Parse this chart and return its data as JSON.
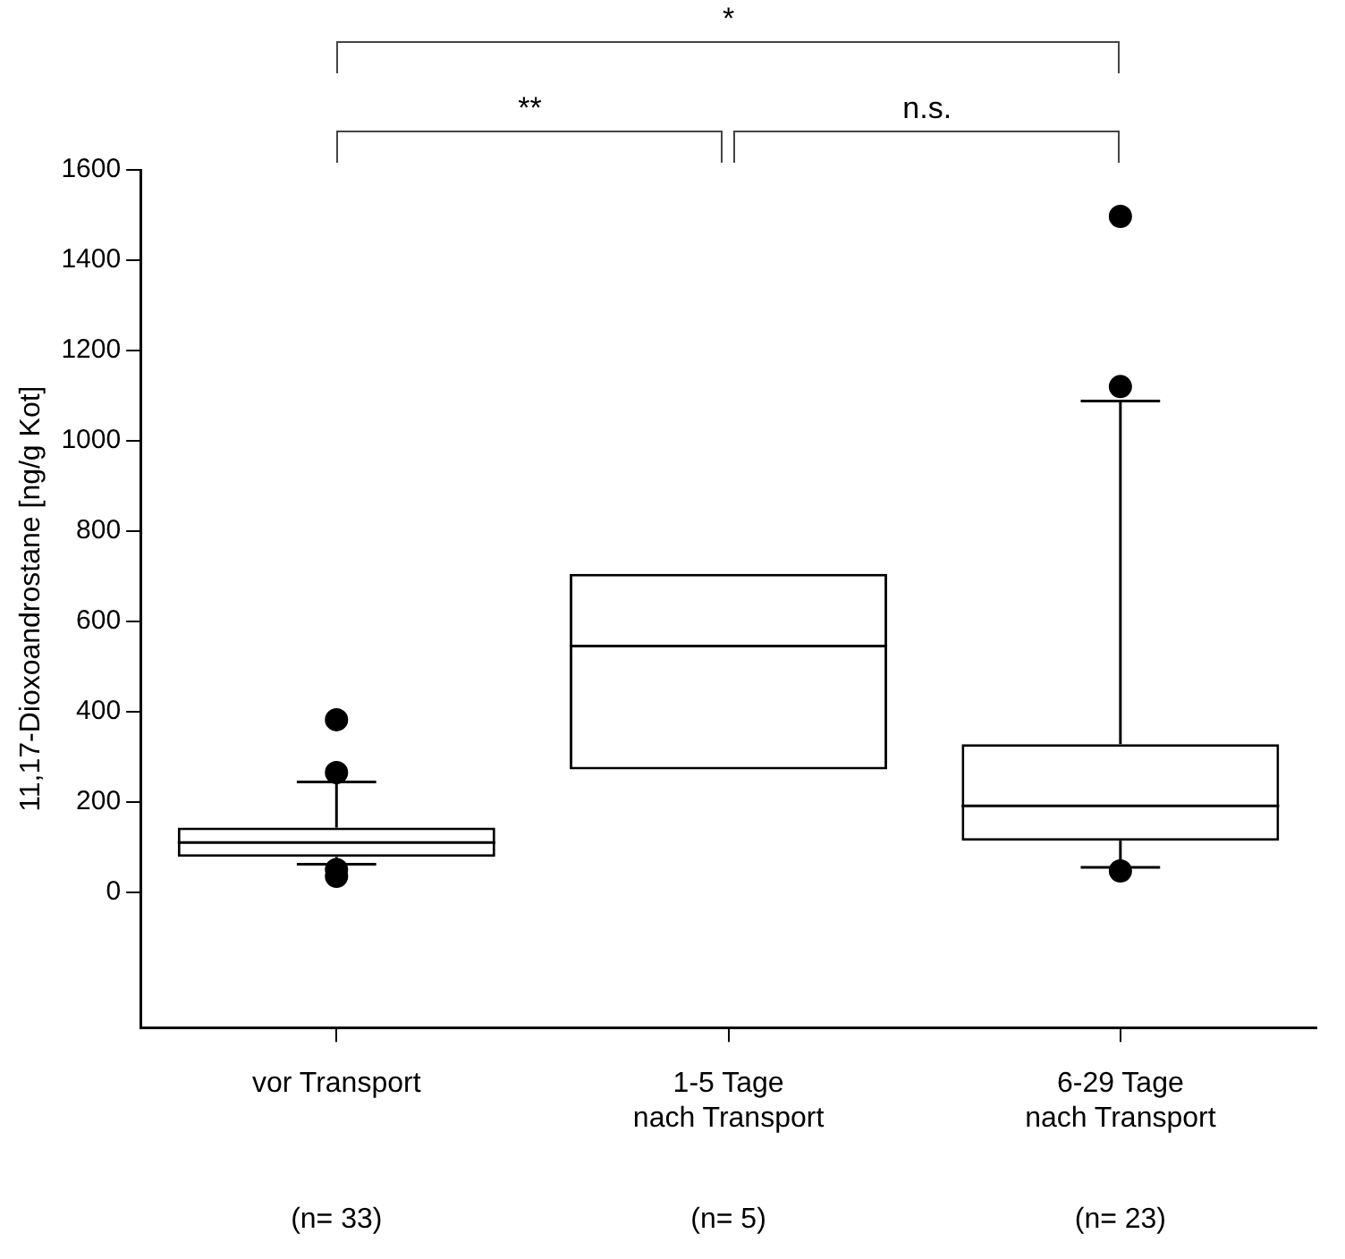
{
  "chart_data": {
    "type": "box",
    "ylabel": "11,17-Dioxoandrostane [ng/g Kot]",
    "categories": [
      "vor Transport",
      "1-5 Tage\nnach Transport",
      "6-29 Tage\nnach Transport"
    ],
    "boxes": [
      {
        "low": 62,
        "q1": 78,
        "median": 110,
        "q3": 143,
        "high": 244,
        "outliers": [
          382,
          265,
          50,
          35
        ]
      },
      {
        "low": 272,
        "q1": 272,
        "median": 545,
        "q3": 705,
        "high": 705
      },
      {
        "low": 55,
        "q1": 114,
        "median": 191,
        "q3": 328,
        "high": 1088,
        "outliers": [
          1497,
          1120,
          47
        ]
      }
    ],
    "ylim": [
      -300,
      1600
    ],
    "yticks": [
      0,
      200,
      400,
      600,
      800,
      1000,
      1200,
      1400,
      1600
    ],
    "grid": false,
    "legend": false,
    "marker": "circle",
    "annotations": [
      "*",
      "**",
      "n.s.",
      "(n= 33)",
      "(n= 5)",
      "(n= 23)"
    ]
  }
}
